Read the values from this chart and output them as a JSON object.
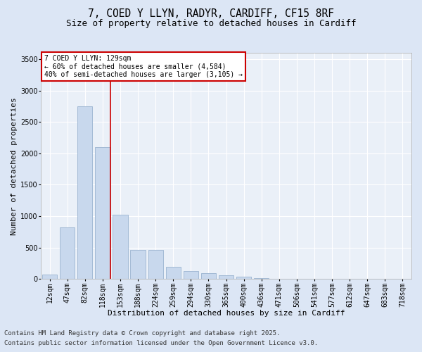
{
  "title_line1": "7, COED Y LLYN, RADYR, CARDIFF, CF15 8RF",
  "title_line2": "Size of property relative to detached houses in Cardiff",
  "xlabel": "Distribution of detached houses by size in Cardiff",
  "ylabel": "Number of detached properties",
  "categories": [
    "12sqm",
    "47sqm",
    "82sqm",
    "118sqm",
    "153sqm",
    "188sqm",
    "224sqm",
    "259sqm",
    "294sqm",
    "330sqm",
    "365sqm",
    "400sqm",
    "436sqm",
    "471sqm",
    "506sqm",
    "541sqm",
    "577sqm",
    "612sqm",
    "647sqm",
    "683sqm",
    "718sqm"
  ],
  "values": [
    75,
    820,
    2750,
    2100,
    1020,
    460,
    460,
    200,
    130,
    95,
    60,
    40,
    20,
    10,
    5,
    3,
    2,
    1,
    0,
    0,
    0
  ],
  "bar_color": "#c8d8ed",
  "bar_edge_color": "#9ab4d0",
  "vline_x_index": 3,
  "vline_color": "#cc0000",
  "annotation_line1": "7 COED Y LLYN: 129sqm",
  "annotation_line2": "← 60% of detached houses are smaller (4,584)",
  "annotation_line3": "40% of semi-detached houses are larger (3,105) →",
  "annotation_box_color": "white",
  "annotation_box_edge_color": "#cc0000",
  "ylim": [
    0,
    3600
  ],
  "yticks": [
    0,
    500,
    1000,
    1500,
    2000,
    2500,
    3000,
    3500
  ],
  "bg_color": "#dce6f5",
  "plot_bg_color": "#eaf0f8",
  "footer_line1": "Contains HM Land Registry data © Crown copyright and database right 2025.",
  "footer_line2": "Contains public sector information licensed under the Open Government Licence v3.0.",
  "title_fontsize": 10.5,
  "subtitle_fontsize": 9,
  "axis_label_fontsize": 8,
  "tick_fontsize": 7,
  "annot_fontsize": 7,
  "footer_fontsize": 6.5
}
